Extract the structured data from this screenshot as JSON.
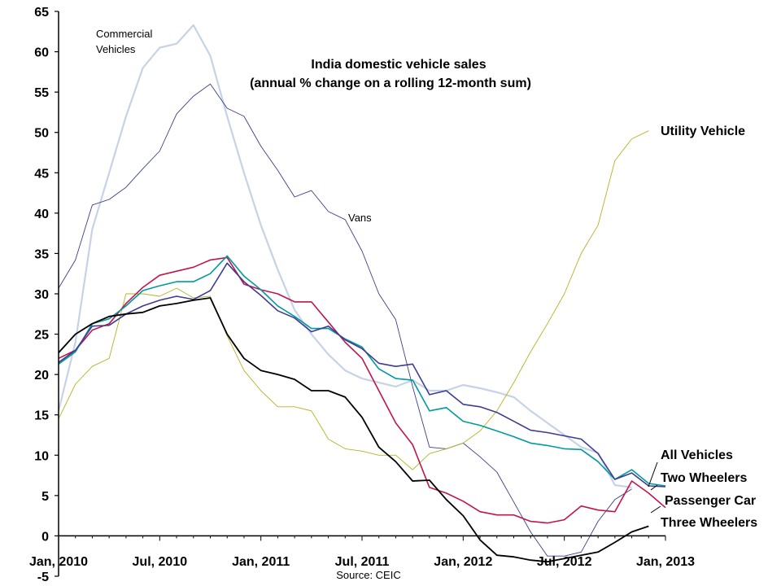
{
  "chart_data": {
    "type": "line",
    "title": "India domestic vehicle sales",
    "subtitle": "(annual % change on a rolling 12-month sum)",
    "source": "Source: CEIC",
    "xlabel": "",
    "ylabel": "",
    "ylim": [
      -5,
      65
    ],
    "yticks": [
      "-5",
      "0",
      "5",
      "10",
      "15",
      "20",
      "25",
      "30",
      "35",
      "40",
      "45",
      "50",
      "55",
      "60",
      "65"
    ],
    "xticks": [
      "Jan, 2010",
      "Jul, 2010",
      "Jan, 2011",
      "Jul, 2011",
      "Jan, 2012",
      "Jul, 2012",
      "Jan, 2013"
    ],
    "x_month_range": [
      0,
      36
    ],
    "series": [
      {
        "name": "Commercial Vehicles",
        "label": "Commercial Vehicles",
        "color": "#c6d3e6",
        "values": [
          15.5,
          24,
          38,
          45,
          52,
          58,
          60.5,
          61,
          63.3,
          59.5,
          52,
          45,
          38.5,
          33,
          28,
          25,
          22.5,
          20.5,
          19.5,
          19,
          18.5,
          19.3,
          18,
          18,
          18.7,
          18.3,
          17.8,
          17.2,
          15.5,
          14,
          12.5,
          11,
          10.3,
          6.3,
          6
        ]
      },
      {
        "name": "Vans",
        "label": "Vans",
        "color": "#3b3e8a",
        "values": [
          30.7,
          34.2,
          41,
          41.7,
          43.2,
          45.5,
          47.7,
          52.3,
          54.5,
          56,
          53,
          52,
          48.3,
          45.3,
          42,
          42.8,
          40.2,
          39.2,
          35.3,
          30,
          26.8,
          18.5,
          11,
          10.8,
          11.5,
          9.8,
          7.9,
          4.2,
          0.5,
          -2.5,
          -2.5,
          -2,
          1.8,
          4.5,
          5.8
        ]
      },
      {
        "name": "Utility Vehicle",
        "label": "Utility Vehicle",
        "color": "#b5b322",
        "values": [
          14.5,
          18.8,
          21,
          22,
          30,
          30,
          29.7,
          30.7,
          29.5,
          29.7,
          24.8,
          20.5,
          18,
          16,
          16,
          15.5,
          12,
          10.8,
          10.5,
          10,
          10,
          8.2,
          10.2,
          10.8,
          11.5,
          13,
          15.5,
          19,
          22.8,
          26.3,
          30,
          35,
          38.5,
          46.5,
          49.2,
          50.2
        ]
      },
      {
        "name": "Passenger Car",
        "label": "Passenger Car",
        "color": "#c1154d",
        "values": [
          22,
          23,
          25.5,
          26.3,
          28.8,
          30.8,
          32.3,
          32.8,
          33.3,
          34.2,
          34.5,
          31.2,
          30.5,
          30,
          29,
          29,
          26.5,
          24,
          22,
          18,
          14,
          11.3,
          6,
          5.3,
          4.3,
          3,
          2.6,
          2.6,
          1.8,
          1.6,
          2,
          3.7,
          3.2,
          3,
          6.8,
          5.3,
          3.5
        ]
      },
      {
        "name": "Two Wheelers",
        "label": "Two Wheelers",
        "color": "#009b9b",
        "values": [
          21.3,
          22.8,
          26.3,
          26.9,
          28.5,
          30.4,
          31,
          31.5,
          31.5,
          32.5,
          34.7,
          32.2,
          30.5,
          28.5,
          27.2,
          25.7,
          25.7,
          24.4,
          23.4,
          20.7,
          19.5,
          19.3,
          15.5,
          15.9,
          14.2,
          13.7,
          13,
          12.3,
          11.5,
          11.2,
          10.8,
          10.7,
          9.2,
          7,
          8.2,
          6.5,
          6.2
        ]
      },
      {
        "name": "All Vehicles",
        "label": "All Vehicles",
        "color": "#3e3b94",
        "values": [
          21.5,
          23,
          26,
          26.1,
          27.5,
          28.5,
          29.2,
          29.7,
          29.3,
          30.4,
          33.8,
          31.5,
          29.8,
          27.9,
          27,
          25.3,
          26,
          24.3,
          23.2,
          21.4,
          21,
          21.3,
          17.5,
          18,
          16.3,
          16,
          15.3,
          14.2,
          13.1,
          12.8,
          12.4,
          12,
          10.2,
          7,
          7.8,
          6.2,
          6.1
        ]
      },
      {
        "name": "Three Wheelers",
        "label": "Three Wheelers",
        "color": "#000000",
        "values": [
          22.7,
          25,
          26.3,
          27.2,
          27.5,
          27.7,
          28.5,
          28.8,
          29.2,
          29.5,
          25,
          22,
          20.5,
          20,
          19.4,
          18,
          18,
          17.2,
          14.7,
          11,
          9.2,
          6.8,
          6.9,
          4.5,
          2.5,
          -0.5,
          -2.4,
          -2.6,
          -3,
          -3.2,
          -2.8,
          -2.4,
          -2,
          -0.8,
          0.5,
          1.2
        ]
      }
    ]
  }
}
